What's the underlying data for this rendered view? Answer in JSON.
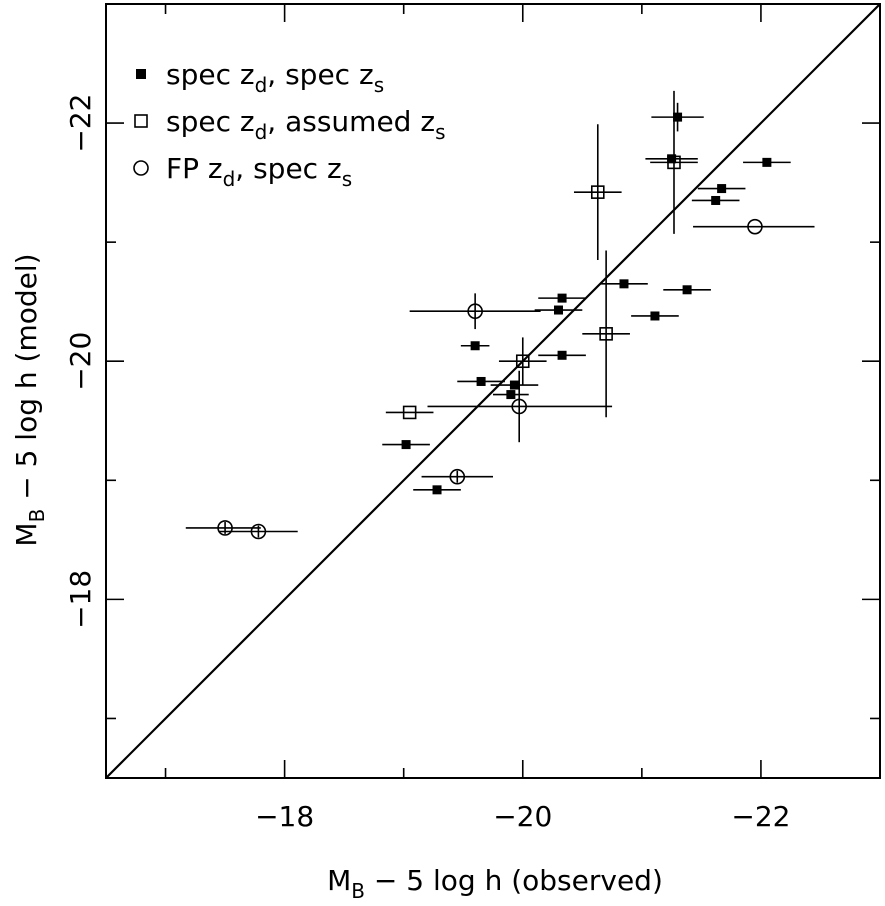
{
  "chart_data": {
    "type": "scatter",
    "xlabel": "M_B − 5 log h (observed)",
    "ylabel": "M_B − 5 log h (model)",
    "xlabel_parts": [
      "M",
      "B",
      " − 5 log h (observed)"
    ],
    "ylabel_parts": [
      "M",
      "B",
      " − 5 log h (model)"
    ],
    "xlim": [
      -16.5,
      -23.0
    ],
    "ylim": [
      -16.5,
      -23.0
    ],
    "x_ticks": [
      -18,
      -20,
      -22
    ],
    "y_ticks": [
      -18,
      -20,
      -22
    ],
    "x_tick_labels": [
      "−18",
      "−20",
      "−22"
    ],
    "y_tick_labels": [
      "−18",
      "−20",
      "−22"
    ],
    "reference_line": "y = x",
    "legend_position": "top-left",
    "legend": [
      {
        "marker": "filled-square",
        "parts": [
          "spec z",
          "d",
          ", spec z",
          "s"
        ]
      },
      {
        "marker": "open-square",
        "parts": [
          "spec z",
          "d",
          ", assumed z",
          "s"
        ]
      },
      {
        "marker": "open-circle",
        "parts": [
          "FP z",
          "d",
          ", spec z",
          "s"
        ]
      }
    ],
    "series": [
      {
        "name": "spec z_d, spec z_s",
        "marker": "filled-square",
        "points": [
          {
            "x": -21.3,
            "y": -22.05,
            "xerr": 0.22,
            "yerr": 0.12
          },
          {
            "x": -21.25,
            "y": -21.7,
            "xerr": 0.22,
            "yerr": 0
          },
          {
            "x": -22.05,
            "y": -21.67,
            "xerr": 0.2,
            "yerr": 0
          },
          {
            "x": -21.67,
            "y": -21.45,
            "xerr": 0.2,
            "yerr": 0
          },
          {
            "x": -21.62,
            "y": -21.35,
            "xerr": 0.2,
            "yerr": 0
          },
          {
            "x": -20.85,
            "y": -20.65,
            "xerr": 0.2,
            "yerr": 0
          },
          {
            "x": -21.38,
            "y": -20.6,
            "xerr": 0.2,
            "yerr": 0
          },
          {
            "x": -20.33,
            "y": -20.53,
            "xerr": 0.2,
            "yerr": 0
          },
          {
            "x": -20.3,
            "y": -20.43,
            "xerr": 0.2,
            "yerr": 0
          },
          {
            "x": -21.11,
            "y": -20.38,
            "xerr": 0.2,
            "yerr": 0
          },
          {
            "x": -19.6,
            "y": -20.13,
            "xerr": 0.12,
            "yerr": 0
          },
          {
            "x": -20.33,
            "y": -20.05,
            "xerr": 0.2,
            "yerr": 0
          },
          {
            "x": -19.65,
            "y": -19.83,
            "xerr": 0.2,
            "yerr": 0
          },
          {
            "x": -19.93,
            "y": -19.8,
            "xerr": 0.2,
            "yerr": 0
          },
          {
            "x": -19.9,
            "y": -19.72,
            "xerr": 0.15,
            "yerr": 0
          },
          {
            "x": -19.02,
            "y": -19.3,
            "xerr": 0.2,
            "yerr": 0
          },
          {
            "x": -19.28,
            "y": -18.92,
            "xerr": 0.2,
            "yerr": 0
          }
        ]
      },
      {
        "name": "spec z_d, assumed z_s",
        "marker": "open-square",
        "points": [
          {
            "x": -21.27,
            "y": -21.67,
            "xerr": 0.2,
            "yerr": 0.6
          },
          {
            "x": -20.63,
            "y": -21.42,
            "xerr": 0.2,
            "yerr": 0.57
          },
          {
            "x": -20.7,
            "y": -20.23,
            "xerr": 0.2,
            "yerr": 0.7
          },
          {
            "x": -20.0,
            "y": -20.0,
            "xerr": 0.2,
            "yerr": 0.2
          },
          {
            "x": -19.05,
            "y": -19.57,
            "xerr": 0.2,
            "yerr": 0
          }
        ]
      },
      {
        "name": "FP z_d, spec z_s",
        "marker": "open-circle",
        "points": [
          {
            "x": -21.95,
            "y": -21.13,
            "xerr": [
              0.52,
              0.5
            ],
            "yerr": 0
          },
          {
            "x": -19.6,
            "y": -20.42,
            "xerr": [
              0.55,
              0.55
            ],
            "yerr": 0.15
          },
          {
            "x": -19.97,
            "y": -19.62,
            "xerr": [
              0.77,
              0.78
            ],
            "yerr": 0.3
          },
          {
            "x": -19.45,
            "y": -19.03,
            "xerr": [
              0.3,
              0.3
            ],
            "yerr": 0.05
          },
          {
            "x": -17.5,
            "y": -18.6,
            "xerr": [
              0.33,
              0.3
            ],
            "yerr": 0.05
          },
          {
            "x": -17.78,
            "y": -18.57,
            "xerr": [
              0.33,
              0.33
            ],
            "yerr": 0.05
          }
        ]
      }
    ]
  }
}
